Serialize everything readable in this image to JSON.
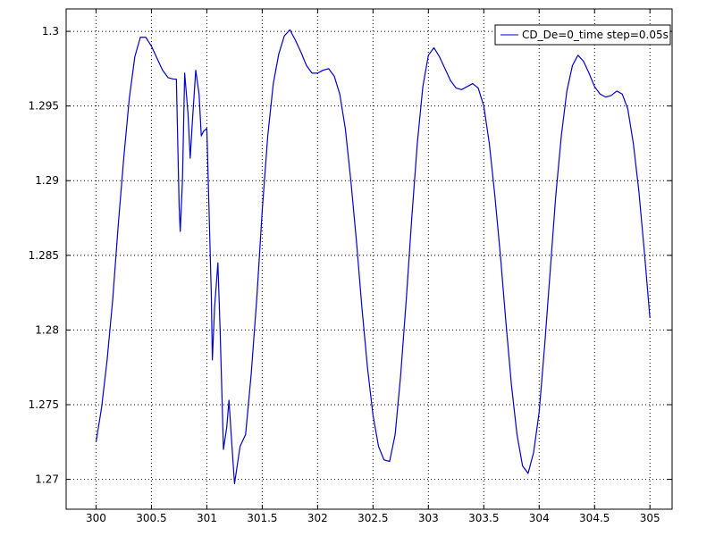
{
  "chart_data": {
    "type": "line",
    "title": "",
    "xlabel": "",
    "ylabel": "",
    "xlim": [
      299.73,
      305.2
    ],
    "ylim": [
      1.268,
      1.3015
    ],
    "xticks": [
      300,
      300.5,
      301,
      301.5,
      302,
      302.5,
      303,
      303.5,
      304,
      304.5,
      305
    ],
    "xtick_labels": [
      "300",
      "300.5",
      "301",
      "301.5",
      "302",
      "302.5",
      "303",
      "303.5",
      "304",
      "304.5",
      "305"
    ],
    "yticks": [
      1.27,
      1.275,
      1.28,
      1.285,
      1.29,
      1.295,
      1.3
    ],
    "ytick_labels": [
      "1.27",
      "1.275",
      "1.28",
      "1.285",
      "1.29",
      "1.295",
      "1.3"
    ],
    "grid": true,
    "legend_position": "top-right",
    "series": [
      {
        "name": "CD_De=0_time step=0.05s",
        "color": "#0000cc",
        "points": [
          [
            300.0,
            1.2725
          ],
          [
            300.05,
            1.2748
          ],
          [
            300.1,
            1.278
          ],
          [
            300.15,
            1.282
          ],
          [
            300.2,
            1.287
          ],
          [
            300.25,
            1.2915
          ],
          [
            300.3,
            1.2955
          ],
          [
            300.35,
            1.2983
          ],
          [
            300.4,
            1.2996
          ],
          [
            300.45,
            1.2996
          ],
          [
            300.5,
            1.299
          ],
          [
            300.55,
            1.2982
          ],
          [
            300.6,
            1.2974
          ],
          [
            300.65,
            1.2969
          ],
          [
            300.7,
            1.2968
          ],
          [
            300.725,
            1.2968
          ],
          [
            300.75,
            1.2883
          ],
          [
            300.76,
            1.2866
          ],
          [
            300.78,
            1.29
          ],
          [
            300.8,
            1.2972
          ],
          [
            300.83,
            1.2945
          ],
          [
            300.85,
            1.2915
          ],
          [
            300.87,
            1.294
          ],
          [
            300.9,
            1.2974
          ],
          [
            300.93,
            1.2958
          ],
          [
            300.95,
            1.293
          ],
          [
            300.97,
            1.2933
          ],
          [
            301.0,
            1.2935
          ],
          [
            301.01,
            1.2908
          ],
          [
            301.04,
            1.2825
          ],
          [
            301.05,
            1.278
          ],
          [
            301.07,
            1.2815
          ],
          [
            301.1,
            1.2845
          ],
          [
            301.12,
            1.28
          ],
          [
            301.15,
            1.272
          ],
          [
            301.18,
            1.2735
          ],
          [
            301.2,
            1.2753
          ],
          [
            301.22,
            1.273
          ],
          [
            301.25,
            1.2697
          ],
          [
            301.3,
            1.2722
          ],
          [
            301.35,
            1.273
          ],
          [
            301.4,
            1.277
          ],
          [
            301.45,
            1.282
          ],
          [
            301.5,
            1.288
          ],
          [
            301.55,
            1.293
          ],
          [
            301.6,
            1.2965
          ],
          [
            301.65,
            1.2985
          ],
          [
            301.7,
            1.2997
          ],
          [
            301.75,
            1.3001
          ],
          [
            301.8,
            1.2994
          ],
          [
            301.85,
            1.2986
          ],
          [
            301.9,
            1.2977
          ],
          [
            301.95,
            1.2972
          ],
          [
            302.0,
            1.2972
          ],
          [
            302.05,
            1.2974
          ],
          [
            302.1,
            1.2975
          ],
          [
            302.15,
            1.297
          ],
          [
            302.2,
            1.2958
          ],
          [
            302.25,
            1.2935
          ],
          [
            302.3,
            1.29
          ],
          [
            302.35,
            1.286
          ],
          [
            302.4,
            1.2815
          ],
          [
            302.45,
            1.2775
          ],
          [
            302.5,
            1.2743
          ],
          [
            302.55,
            1.2722
          ],
          [
            302.6,
            1.2713
          ],
          [
            302.65,
            1.2712
          ],
          [
            302.7,
            1.273
          ],
          [
            302.75,
            1.277
          ],
          [
            302.8,
            1.282
          ],
          [
            302.85,
            1.2875
          ],
          [
            302.9,
            1.2925
          ],
          [
            302.95,
            1.2963
          ],
          [
            303.0,
            1.2984
          ],
          [
            303.05,
            1.2989
          ],
          [
            303.1,
            1.2983
          ],
          [
            303.15,
            1.2975
          ],
          [
            303.2,
            1.2967
          ],
          [
            303.25,
            1.2962
          ],
          [
            303.3,
            1.2961
          ],
          [
            303.35,
            1.2963
          ],
          [
            303.4,
            1.2965
          ],
          [
            303.45,
            1.2962
          ],
          [
            303.5,
            1.295
          ],
          [
            303.55,
            1.2925
          ],
          [
            303.6,
            1.289
          ],
          [
            303.65,
            1.285
          ],
          [
            303.7,
            1.2805
          ],
          [
            303.75,
            1.2763
          ],
          [
            303.8,
            1.273
          ],
          [
            303.85,
            1.2709
          ],
          [
            303.9,
            1.2704
          ],
          [
            303.95,
            1.2718
          ],
          [
            304.0,
            1.2745
          ],
          [
            304.05,
            1.279
          ],
          [
            304.1,
            1.284
          ],
          [
            304.15,
            1.289
          ],
          [
            304.2,
            1.293
          ],
          [
            304.25,
            1.296
          ],
          [
            304.3,
            1.2977
          ],
          [
            304.35,
            1.2984
          ],
          [
            304.4,
            1.298
          ],
          [
            304.45,
            1.2972
          ],
          [
            304.5,
            1.2963
          ],
          [
            304.55,
            1.2958
          ],
          [
            304.6,
            1.2956
          ],
          [
            304.65,
            1.2957
          ],
          [
            304.7,
            1.296
          ],
          [
            304.75,
            1.2958
          ],
          [
            304.8,
            1.2948
          ],
          [
            304.85,
            1.2925
          ],
          [
            304.9,
            1.2893
          ],
          [
            304.95,
            1.2852
          ],
          [
            305.0,
            1.2808
          ]
        ]
      }
    ]
  }
}
